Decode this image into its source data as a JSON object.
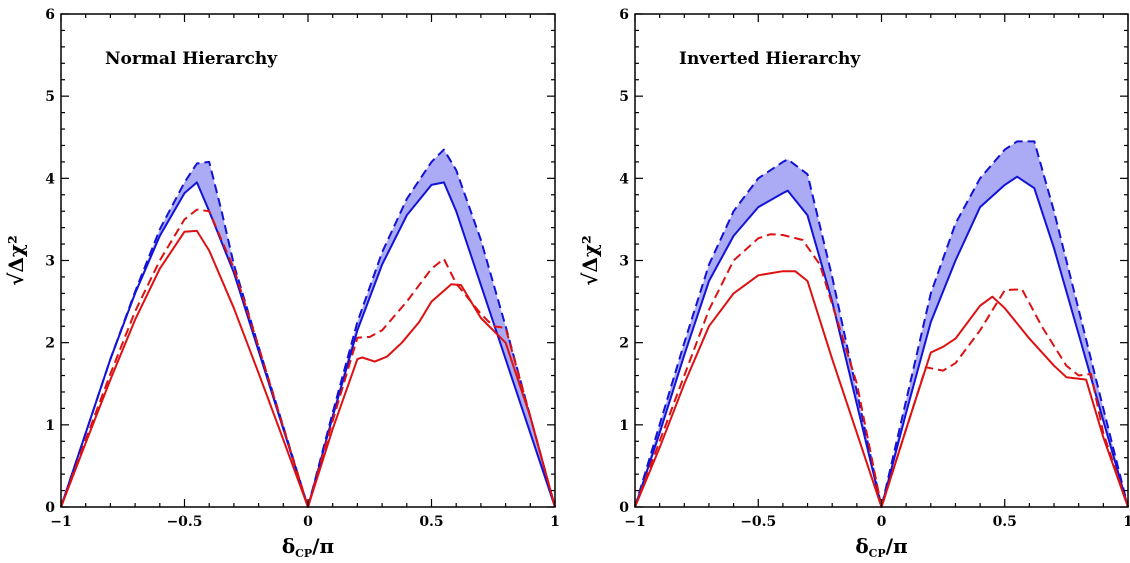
{
  "chart_data": [
    {
      "type": "line",
      "panel_label": "Normal Hierarchy",
      "xlabel": "δ_CP/π",
      "ylabel": "√Δχ²",
      "xlim": [
        -1,
        1
      ],
      "ylim": [
        0,
        6
      ],
      "xticks": [
        "−1",
        "−0.5",
        "0",
        "0.5",
        "1"
      ],
      "yticks": [
        "0",
        "1",
        "2",
        "3",
        "4",
        "5",
        "6"
      ],
      "band": {
        "color": "#aaaaf5",
        "upper": [
          [
            -1,
            0
          ],
          [
            -0.9,
            0.9
          ],
          [
            -0.8,
            1.8
          ],
          [
            -0.7,
            2.62
          ],
          [
            -0.6,
            3.38
          ],
          [
            -0.5,
            3.95
          ],
          [
            -0.45,
            4.18
          ],
          [
            -0.4,
            4.2
          ],
          [
            -0.35,
            3.6
          ],
          [
            -0.3,
            2.95
          ],
          [
            -0.2,
            1.95
          ],
          [
            -0.1,
            0.98
          ],
          [
            0,
            0
          ],
          [
            0.1,
            1.15
          ],
          [
            0.2,
            2.25
          ],
          [
            0.3,
            3.1
          ],
          [
            0.4,
            3.75
          ],
          [
            0.5,
            4.2
          ],
          [
            0.55,
            4.35
          ],
          [
            0.6,
            4.1
          ],
          [
            0.7,
            3.25
          ],
          [
            0.8,
            2.2
          ],
          [
            0.9,
            1.1
          ],
          [
            1,
            0
          ]
        ],
        "lower": [
          [
            -1,
            0
          ],
          [
            -0.9,
            0.9
          ],
          [
            -0.8,
            1.8
          ],
          [
            -0.7,
            2.6
          ],
          [
            -0.6,
            3.3
          ],
          [
            -0.5,
            3.82
          ],
          [
            -0.45,
            3.95
          ],
          [
            -0.4,
            3.6
          ],
          [
            -0.3,
            2.85
          ],
          [
            -0.2,
            1.9
          ],
          [
            -0.1,
            0.95
          ],
          [
            0,
            0
          ],
          [
            0.1,
            1.1
          ],
          [
            0.2,
            2.15
          ],
          [
            0.3,
            2.95
          ],
          [
            0.4,
            3.55
          ],
          [
            0.5,
            3.92
          ],
          [
            0.55,
            3.95
          ],
          [
            0.6,
            3.6
          ],
          [
            0.7,
            2.7
          ],
          [
            0.8,
            1.8
          ],
          [
            0.9,
            0.9
          ],
          [
            1,
            0
          ]
        ]
      },
      "series": [
        {
          "style": "dashed",
          "color": "#1212d8",
          "x": [
            -1,
            -0.9,
            -0.8,
            -0.7,
            -0.6,
            -0.5,
            -0.45,
            -0.4,
            -0.35,
            -0.3,
            -0.2,
            -0.1,
            0,
            0.1,
            0.2,
            0.3,
            0.4,
            0.5,
            0.55,
            0.6,
            0.7,
            0.8,
            0.9,
            1
          ],
          "y": [
            0,
            0.9,
            1.8,
            2.62,
            3.38,
            3.95,
            4.18,
            4.2,
            3.6,
            2.95,
            1.95,
            0.98,
            0,
            1.15,
            2.25,
            3.1,
            3.75,
            4.2,
            4.35,
            4.1,
            3.25,
            2.2,
            1.1,
            0
          ]
        },
        {
          "style": "solid",
          "color": "#1212d8",
          "x": [
            -1,
            -0.9,
            -0.8,
            -0.7,
            -0.6,
            -0.5,
            -0.45,
            -0.4,
            -0.3,
            -0.2,
            -0.1,
            0,
            0.1,
            0.2,
            0.3,
            0.4,
            0.5,
            0.55,
            0.6,
            0.7,
            0.8,
            0.9,
            1
          ],
          "y": [
            0,
            0.9,
            1.8,
            2.6,
            3.3,
            3.82,
            3.95,
            3.6,
            2.85,
            1.9,
            0.95,
            0,
            1.1,
            2.15,
            2.95,
            3.55,
            3.92,
            3.95,
            3.6,
            2.7,
            1.8,
            0.9,
            0
          ]
        },
        {
          "style": "dashed",
          "color": "#dd1111",
          "x": [
            -1,
            -0.9,
            -0.8,
            -0.7,
            -0.6,
            -0.5,
            -0.45,
            -0.4,
            -0.3,
            -0.2,
            -0.1,
            0,
            0.1,
            0.2,
            0.25,
            0.3,
            0.4,
            0.5,
            0.55,
            0.6,
            0.7,
            0.75,
            0.8,
            0.9,
            1
          ],
          "y": [
            0,
            0.82,
            1.62,
            2.38,
            3.0,
            3.5,
            3.62,
            3.6,
            2.9,
            1.95,
            0.97,
            0,
            1.05,
            2.06,
            2.07,
            2.15,
            2.5,
            2.9,
            3.02,
            2.72,
            2.35,
            2.2,
            2.18,
            1.1,
            0
          ]
        },
        {
          "style": "solid",
          "color": "#dd1111",
          "x": [
            -1,
            -0.9,
            -0.8,
            -0.7,
            -0.6,
            -0.5,
            -0.45,
            -0.4,
            -0.3,
            -0.2,
            -0.1,
            0,
            0.1,
            0.2,
            0.22,
            0.27,
            0.32,
            0.38,
            0.45,
            0.5,
            0.58,
            0.62,
            0.7,
            0.8,
            0.9,
            1
          ],
          "y": [
            0,
            0.78,
            1.55,
            2.28,
            2.9,
            3.35,
            3.36,
            3.12,
            2.42,
            1.63,
            0.82,
            0,
            0.95,
            1.8,
            1.82,
            1.77,
            1.83,
            2.0,
            2.25,
            2.5,
            2.71,
            2.7,
            2.3,
            2.0,
            1.1,
            0
          ]
        }
      ]
    },
    {
      "type": "line",
      "panel_label": "Inverted Hierarchy",
      "xlabel": "δ_CP/π",
      "ylabel": "√Δχ²",
      "xlim": [
        -1,
        1
      ],
      "ylim": [
        0,
        6
      ],
      "xticks": [
        "−1",
        "−0.5",
        "0",
        "0.5",
        "1"
      ],
      "yticks": [
        "0",
        "1",
        "2",
        "3",
        "4",
        "5",
        "6"
      ],
      "band": {
        "color": "#aaaaf5",
        "upper": [
          [
            -1,
            0
          ],
          [
            -0.9,
            1.0
          ],
          [
            -0.8,
            2.0
          ],
          [
            -0.7,
            2.95
          ],
          [
            -0.6,
            3.6
          ],
          [
            -0.5,
            4.0
          ],
          [
            -0.4,
            4.2
          ],
          [
            -0.38,
            4.23
          ],
          [
            -0.3,
            4.05
          ],
          [
            -0.2,
            2.8
          ],
          [
            -0.1,
            1.4
          ],
          [
            0,
            0
          ],
          [
            0.1,
            1.3
          ],
          [
            0.2,
            2.6
          ],
          [
            0.3,
            3.45
          ],
          [
            0.4,
            4.0
          ],
          [
            0.5,
            4.35
          ],
          [
            0.55,
            4.45
          ],
          [
            0.62,
            4.45
          ],
          [
            0.7,
            3.6
          ],
          [
            0.8,
            2.4
          ],
          [
            0.9,
            1.2
          ],
          [
            1,
            0
          ]
        ],
        "lower": [
          [
            -1,
            0
          ],
          [
            -0.9,
            0.9
          ],
          [
            -0.8,
            1.85
          ],
          [
            -0.7,
            2.75
          ],
          [
            -0.6,
            3.3
          ],
          [
            -0.5,
            3.65
          ],
          [
            -0.4,
            3.82
          ],
          [
            -0.38,
            3.85
          ],
          [
            -0.3,
            3.55
          ],
          [
            -0.2,
            2.5
          ],
          [
            -0.1,
            1.25
          ],
          [
            0,
            0
          ],
          [
            0.1,
            1.15
          ],
          [
            0.2,
            2.25
          ],
          [
            0.3,
            3.0
          ],
          [
            0.4,
            3.65
          ],
          [
            0.5,
            3.92
          ],
          [
            0.55,
            4.02
          ],
          [
            0.62,
            3.88
          ],
          [
            0.7,
            3.15
          ],
          [
            0.8,
            2.1
          ],
          [
            0.9,
            1.05
          ],
          [
            1,
            0
          ]
        ]
      },
      "series": [
        {
          "style": "dashed",
          "color": "#1212d8",
          "x": [
            -1,
            -0.9,
            -0.8,
            -0.7,
            -0.6,
            -0.5,
            -0.4,
            -0.38,
            -0.3,
            -0.2,
            -0.1,
            0,
            0.1,
            0.2,
            0.3,
            0.4,
            0.5,
            0.55,
            0.62,
            0.7,
            0.8,
            0.9,
            1
          ],
          "y": [
            0,
            1.0,
            2.0,
            2.95,
            3.6,
            4.0,
            4.2,
            4.23,
            4.05,
            2.8,
            1.4,
            0,
            1.3,
            2.6,
            3.45,
            4.0,
            4.35,
            4.45,
            4.45,
            3.6,
            2.4,
            1.2,
            0
          ]
        },
        {
          "style": "solid",
          "color": "#1212d8",
          "x": [
            -1,
            -0.9,
            -0.8,
            -0.7,
            -0.6,
            -0.5,
            -0.4,
            -0.38,
            -0.3,
            -0.2,
            -0.1,
            0,
            0.1,
            0.2,
            0.3,
            0.4,
            0.5,
            0.55,
            0.62,
            0.7,
            0.8,
            0.9,
            1
          ],
          "y": [
            0,
            0.9,
            1.85,
            2.75,
            3.3,
            3.65,
            3.82,
            3.85,
            3.55,
            2.5,
            1.25,
            0,
            1.15,
            2.25,
            3.0,
            3.65,
            3.92,
            4.02,
            3.88,
            3.15,
            2.1,
            1.05,
            0
          ]
        },
        {
          "style": "dashed",
          "color": "#dd1111",
          "x": [
            -1,
            -0.9,
            -0.8,
            -0.7,
            -0.6,
            -0.5,
            -0.45,
            -0.4,
            -0.32,
            -0.25,
            -0.1,
            0,
            0.1,
            0.18,
            0.25,
            0.3,
            0.4,
            0.5,
            0.57,
            0.65,
            0.75,
            0.8,
            0.85,
            0.9,
            1
          ],
          "y": [
            0,
            0.8,
            1.6,
            2.4,
            3.0,
            3.27,
            3.32,
            3.31,
            3.25,
            2.95,
            1.5,
            0,
            0.95,
            1.7,
            1.66,
            1.75,
            2.15,
            2.64,
            2.65,
            2.2,
            1.72,
            1.6,
            1.62,
            0.9,
            0
          ]
        },
        {
          "style": "solid",
          "color": "#dd1111",
          "x": [
            -1,
            -0.9,
            -0.8,
            -0.7,
            -0.6,
            -0.5,
            -0.4,
            -0.35,
            -0.3,
            -0.2,
            -0.1,
            0,
            0.1,
            0.2,
            0.25,
            0.3,
            0.4,
            0.45,
            0.5,
            0.6,
            0.7,
            0.75,
            0.83,
            0.9,
            1
          ],
          "y": [
            0,
            0.72,
            1.5,
            2.2,
            2.6,
            2.82,
            2.87,
            2.87,
            2.75,
            1.8,
            0.9,
            0,
            0.95,
            1.88,
            1.95,
            2.05,
            2.45,
            2.56,
            2.42,
            2.05,
            1.72,
            1.58,
            1.55,
            0.85,
            0
          ]
        }
      ]
    }
  ]
}
